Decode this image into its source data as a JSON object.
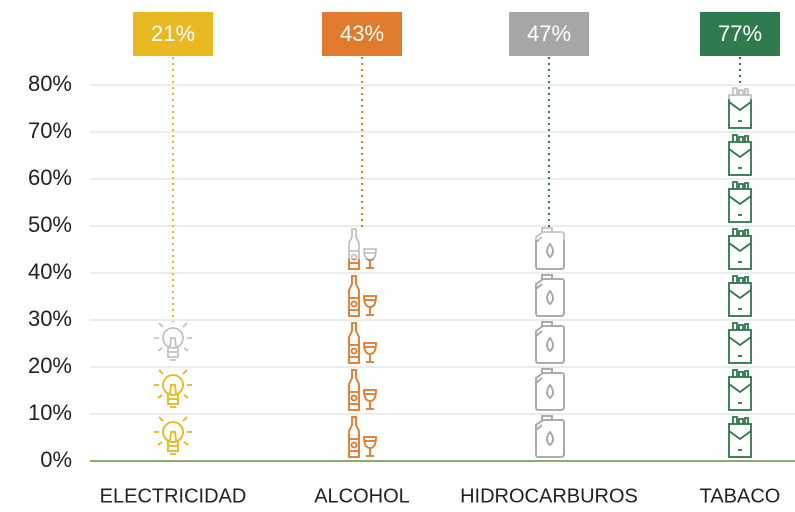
{
  "chart_data": {
    "type": "pictogram",
    "categories": [
      "ELECTRICIDAD",
      "ALCOHOL",
      "HIDROCARBUROS",
      "TABACO"
    ],
    "values": [
      21,
      43,
      47,
      77
    ],
    "value_labels": [
      "21%",
      "43%",
      "47%",
      "77%"
    ],
    "colors": [
      "#e8b923",
      "#e07a2c",
      "#a6a6a6",
      "#2f7a4e"
    ],
    "ylim": [
      0,
      80
    ],
    "yticks": [
      {
        "value": 0,
        "label": "0%"
      },
      {
        "value": 10,
        "label": "10%"
      },
      {
        "value": 20,
        "label": "20%"
      },
      {
        "value": 30,
        "label": "30%"
      },
      {
        "value": 40,
        "label": "40%"
      },
      {
        "value": 50,
        "label": "50%"
      },
      {
        "value": 60,
        "label": "60%"
      },
      {
        "value": 70,
        "label": "70%"
      },
      {
        "value": 80,
        "label": "80%"
      }
    ],
    "icon_step": 10,
    "grid": true
  }
}
